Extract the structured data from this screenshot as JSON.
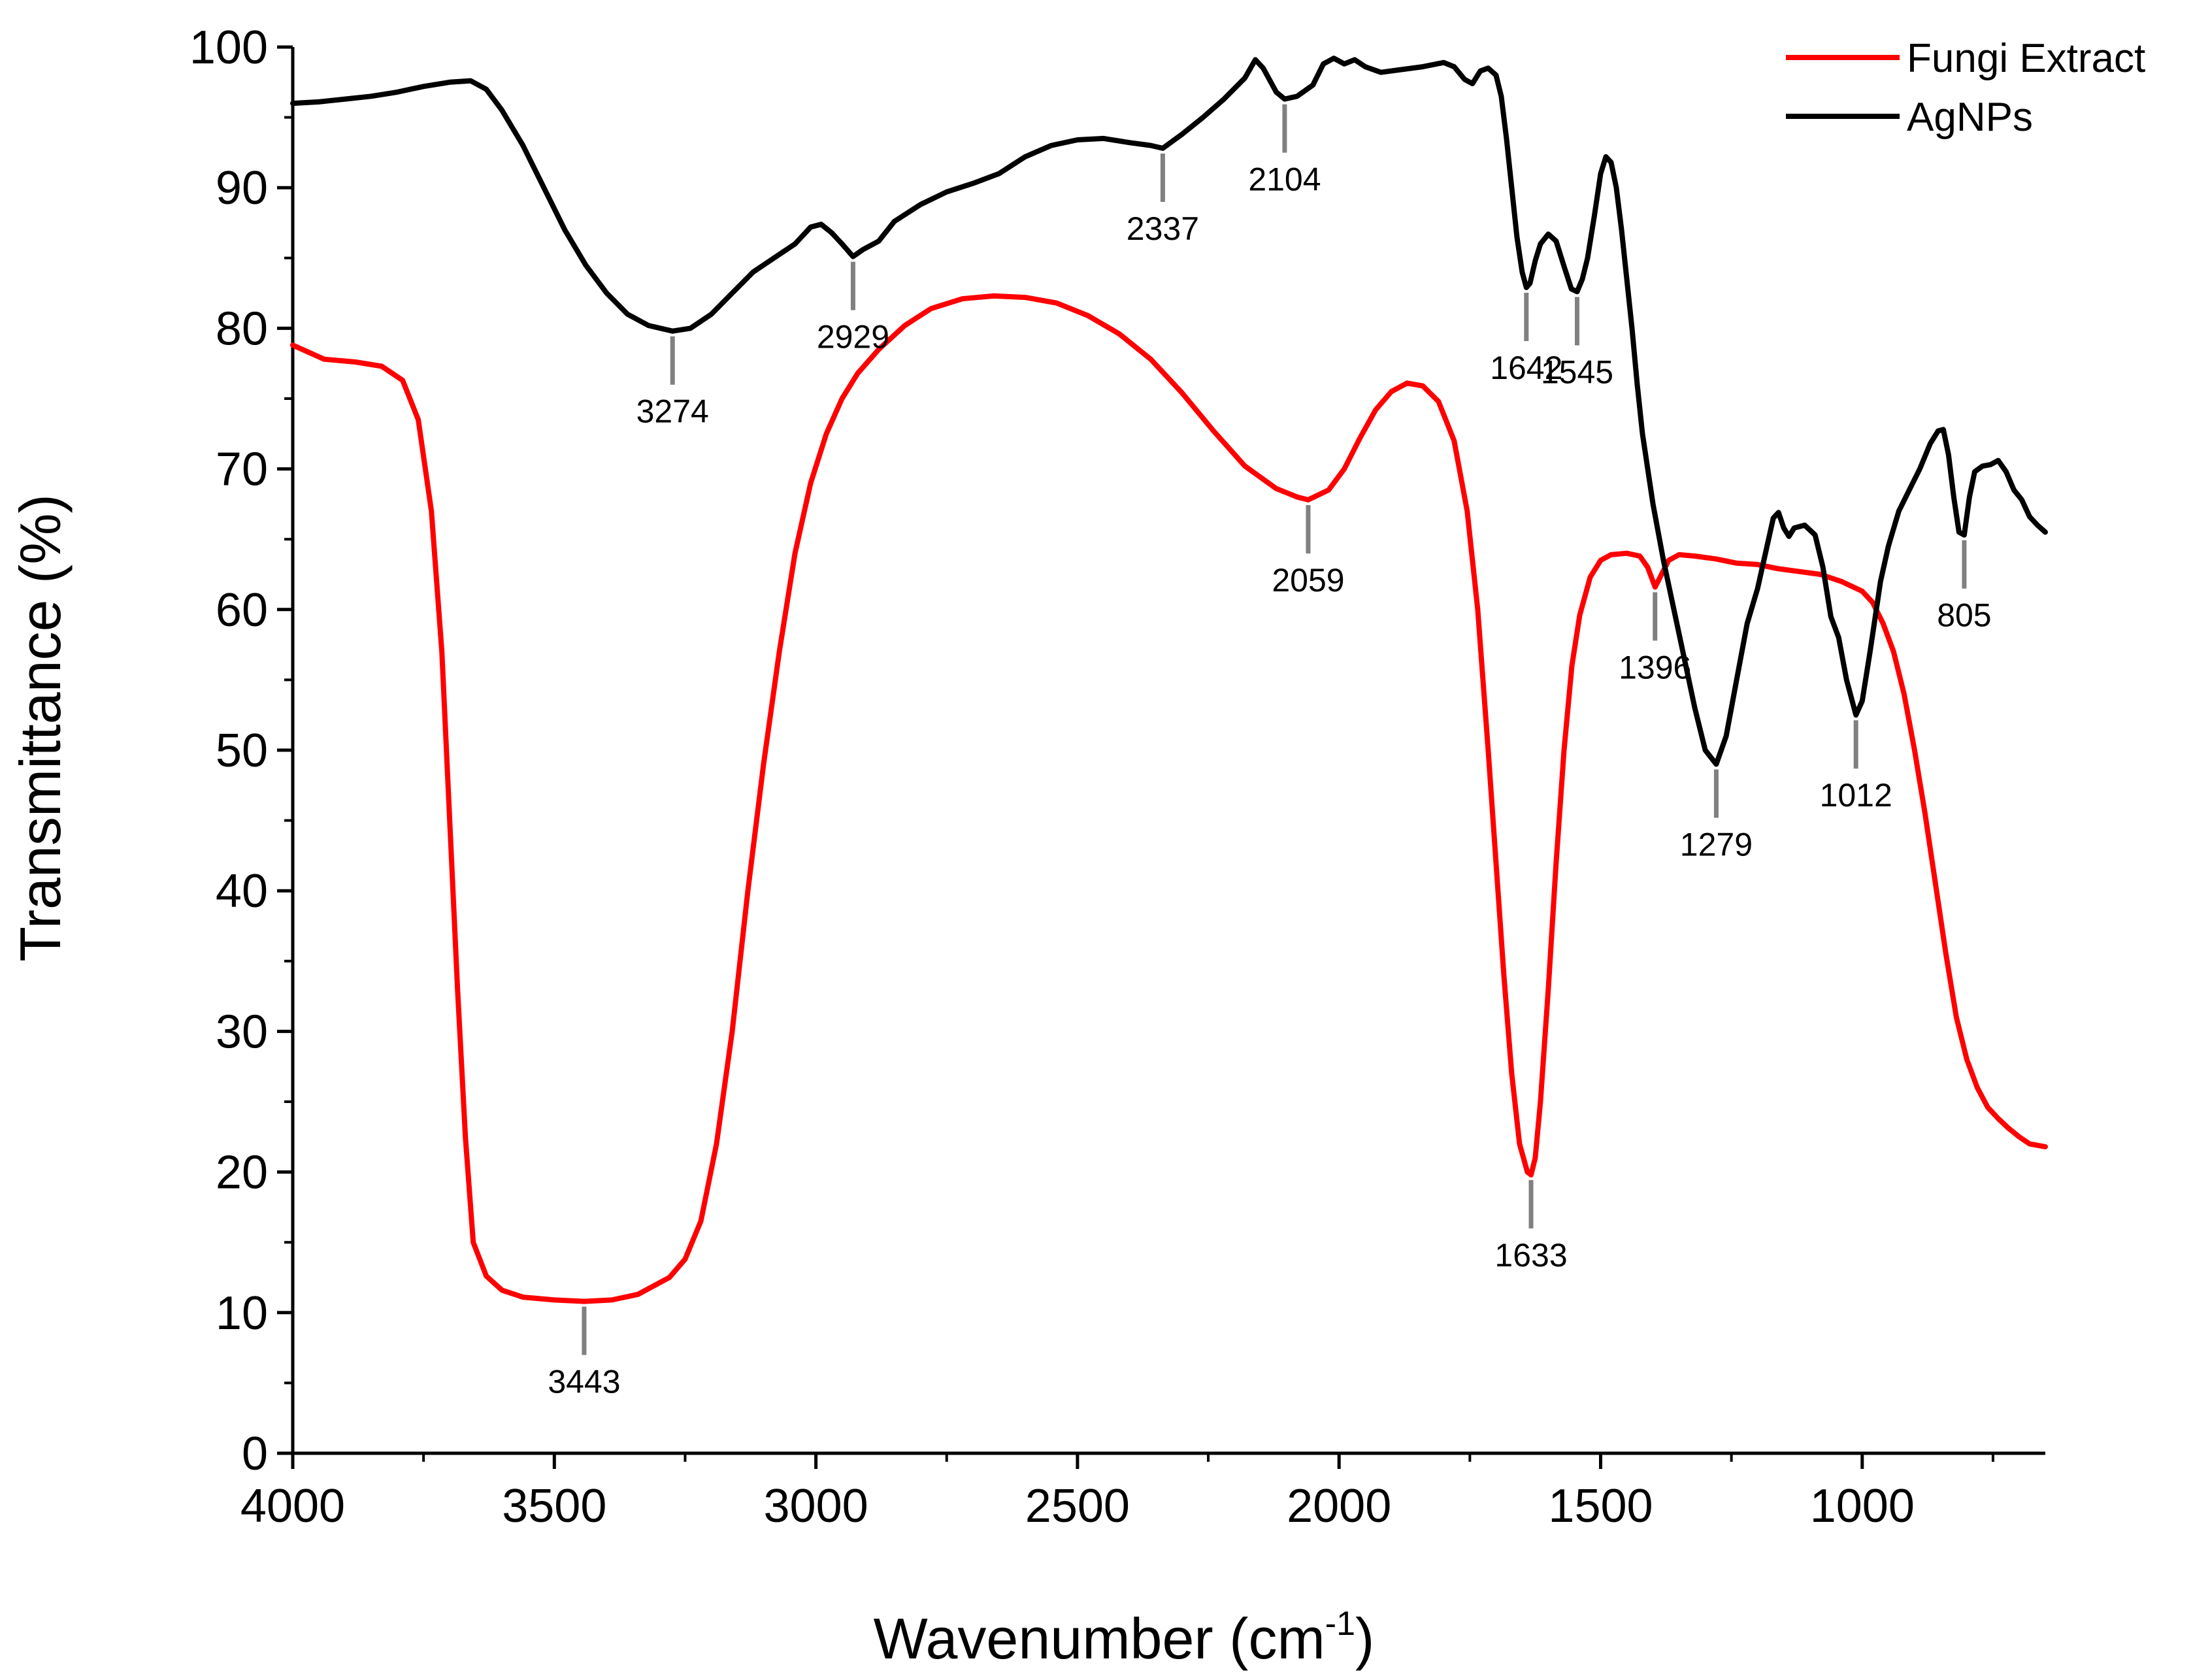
{
  "chart_data": {
    "type": "line",
    "title": "",
    "xlabel": "Wavenumber (cm",
    "xlabel_sup": "-1",
    "xlabel_close": ")",
    "ylabel": "Transmittance (%)",
    "xlim": [
      4000,
      650
    ],
    "ylim": [
      0,
      100
    ],
    "x_ticks": [
      4000,
      3500,
      3000,
      2500,
      2000,
      1500,
      1000
    ],
    "x_tick_labels": [
      "4000",
      "3500",
      "3000",
      "2500",
      "2000",
      "1500",
      "1000"
    ],
    "y_ticks": [
      0,
      10,
      20,
      30,
      40,
      50,
      60,
      70,
      80,
      90,
      100
    ],
    "y_tick_labels": [
      "0",
      "10",
      "20",
      "30",
      "40",
      "50",
      "60",
      "70",
      "80",
      "90",
      "100"
    ],
    "legend_position": "top-right",
    "series": [
      {
        "name": "Fungi Extract",
        "color": "#ff0000",
        "points": [
          [
            4000,
            78.8
          ],
          [
            3940,
            77.8
          ],
          [
            3880,
            77.6
          ],
          [
            3830,
            77.3
          ],
          [
            3790,
            76.3
          ],
          [
            3760,
            73.5
          ],
          [
            3735,
            67.0
          ],
          [
            3715,
            57.0
          ],
          [
            3700,
            45.0
          ],
          [
            3685,
            33.0
          ],
          [
            3670,
            22.5
          ],
          [
            3655,
            15.0
          ],
          [
            3630,
            12.6
          ],
          [
            3600,
            11.6
          ],
          [
            3560,
            11.1
          ],
          [
            3500,
            10.9
          ],
          [
            3443,
            10.8
          ],
          [
            3390,
            10.9
          ],
          [
            3340,
            11.3
          ],
          [
            3280,
            12.5
          ],
          [
            3250,
            13.8
          ],
          [
            3220,
            16.5
          ],
          [
            3190,
            22.0
          ],
          [
            3160,
            30.0
          ],
          [
            3130,
            40.0
          ],
          [
            3100,
            49.0
          ],
          [
            3070,
            57.0
          ],
          [
            3040,
            64.0
          ],
          [
            3010,
            69.0
          ],
          [
            2980,
            72.5
          ],
          [
            2950,
            75.0
          ],
          [
            2920,
            76.8
          ],
          [
            2880,
            78.5
          ],
          [
            2830,
            80.2
          ],
          [
            2780,
            81.4
          ],
          [
            2720,
            82.1
          ],
          [
            2660,
            82.3
          ],
          [
            2600,
            82.2
          ],
          [
            2540,
            81.8
          ],
          [
            2480,
            80.9
          ],
          [
            2420,
            79.6
          ],
          [
            2360,
            77.8
          ],
          [
            2300,
            75.4
          ],
          [
            2240,
            72.7
          ],
          [
            2180,
            70.2
          ],
          [
            2120,
            68.6
          ],
          [
            2080,
            68.0
          ],
          [
            2059,
            67.8
          ],
          [
            2020,
            68.5
          ],
          [
            1990,
            70.0
          ],
          [
            1960,
            72.2
          ],
          [
            1930,
            74.2
          ],
          [
            1900,
            75.5
          ],
          [
            1870,
            76.1
          ],
          [
            1840,
            75.9
          ],
          [
            1810,
            74.8
          ],
          [
            1780,
            72.0
          ],
          [
            1755,
            67.0
          ],
          [
            1735,
            60.0
          ],
          [
            1715,
            50.0
          ],
          [
            1700,
            42.0
          ],
          [
            1685,
            34.0
          ],
          [
            1670,
            27.0
          ],
          [
            1655,
            22.0
          ],
          [
            1640,
            20.0
          ],
          [
            1633,
            19.8
          ],
          [
            1625,
            21.0
          ],
          [
            1615,
            25.0
          ],
          [
            1600,
            33.0
          ],
          [
            1585,
            42.0
          ],
          [
            1570,
            50.0
          ],
          [
            1555,
            56.0
          ],
          [
            1540,
            59.6
          ],
          [
            1520,
            62.3
          ],
          [
            1500,
            63.5
          ],
          [
            1480,
            63.9
          ],
          [
            1450,
            64.0
          ],
          [
            1425,
            63.8
          ],
          [
            1410,
            63.0
          ],
          [
            1396,
            61.6
          ],
          [
            1385,
            62.4
          ],
          [
            1370,
            63.5
          ],
          [
            1350,
            63.9
          ],
          [
            1320,
            63.8
          ],
          [
            1280,
            63.6
          ],
          [
            1240,
            63.3
          ],
          [
            1200,
            63.2
          ],
          [
            1160,
            62.9
          ],
          [
            1120,
            62.7
          ],
          [
            1080,
            62.5
          ],
          [
            1040,
            62.0
          ],
          [
            1000,
            61.3
          ],
          [
            980,
            60.5
          ],
          [
            960,
            59.0
          ],
          [
            940,
            57.0
          ],
          [
            920,
            54.0
          ],
          [
            900,
            50.0
          ],
          [
            880,
            45.5
          ],
          [
            860,
            40.5
          ],
          [
            840,
            35.5
          ],
          [
            820,
            31.0
          ],
          [
            800,
            28.0
          ],
          [
            780,
            26.0
          ],
          [
            760,
            24.6
          ],
          [
            740,
            23.8
          ],
          [
            720,
            23.1
          ],
          [
            700,
            22.5
          ],
          [
            680,
            22.0
          ],
          [
            650,
            21.8
          ]
        ]
      },
      {
        "name": "AgNPs",
        "color": "#000000",
        "points": [
          [
            4000,
            96.0
          ],
          [
            3950,
            96.1
          ],
          [
            3900,
            96.3
          ],
          [
            3850,
            96.5
          ],
          [
            3800,
            96.8
          ],
          [
            3750,
            97.2
          ],
          [
            3700,
            97.5
          ],
          [
            3660,
            97.6
          ],
          [
            3630,
            97.0
          ],
          [
            3600,
            95.5
          ],
          [
            3560,
            93.0
          ],
          [
            3520,
            90.0
          ],
          [
            3480,
            87.0
          ],
          [
            3440,
            84.5
          ],
          [
            3400,
            82.5
          ],
          [
            3360,
            81.0
          ],
          [
            3320,
            80.2
          ],
          [
            3274,
            79.8
          ],
          [
            3240,
            80.0
          ],
          [
            3200,
            81.0
          ],
          [
            3160,
            82.5
          ],
          [
            3120,
            84.0
          ],
          [
            3080,
            85.0
          ],
          [
            3040,
            86.0
          ],
          [
            3010,
            87.2
          ],
          [
            2990,
            87.4
          ],
          [
            2970,
            86.8
          ],
          [
            2950,
            86.0
          ],
          [
            2929,
            85.1
          ],
          [
            2910,
            85.6
          ],
          [
            2880,
            86.2
          ],
          [
            2850,
            87.6
          ],
          [
            2800,
            88.8
          ],
          [
            2750,
            89.7
          ],
          [
            2700,
            90.3
          ],
          [
            2650,
            91.0
          ],
          [
            2600,
            92.2
          ],
          [
            2550,
            93.0
          ],
          [
            2500,
            93.4
          ],
          [
            2450,
            93.5
          ],
          [
            2400,
            93.2
          ],
          [
            2360,
            93.0
          ],
          [
            2337,
            92.8
          ],
          [
            2300,
            93.8
          ],
          [
            2260,
            95.0
          ],
          [
            2220,
            96.3
          ],
          [
            2180,
            97.8
          ],
          [
            2160,
            99.1
          ],
          [
            2145,
            98.5
          ],
          [
            2120,
            96.8
          ],
          [
            2104,
            96.3
          ],
          [
            2080,
            96.5
          ],
          [
            2050,
            97.3
          ],
          [
            2030,
            98.8
          ],
          [
            2010,
            99.2
          ],
          [
            1990,
            98.8
          ],
          [
            1970,
            99.1
          ],
          [
            1950,
            98.6
          ],
          [
            1920,
            98.2
          ],
          [
            1880,
            98.4
          ],
          [
            1840,
            98.6
          ],
          [
            1800,
            98.9
          ],
          [
            1780,
            98.6
          ],
          [
            1760,
            97.7
          ],
          [
            1745,
            97.4
          ],
          [
            1730,
            98.3
          ],
          [
            1715,
            98.5
          ],
          [
            1700,
            98.0
          ],
          [
            1690,
            96.5
          ],
          [
            1680,
            93.5
          ],
          [
            1670,
            90.0
          ],
          [
            1660,
            86.5
          ],
          [
            1650,
            84.0
          ],
          [
            1642,
            82.9
          ],
          [
            1635,
            83.2
          ],
          [
            1625,
            84.8
          ],
          [
            1615,
            86.0
          ],
          [
            1600,
            86.7
          ],
          [
            1585,
            86.2
          ],
          [
            1570,
            84.4
          ],
          [
            1556,
            82.8
          ],
          [
            1545,
            82.6
          ],
          [
            1535,
            83.5
          ],
          [
            1525,
            85.0
          ],
          [
            1512,
            88.0
          ],
          [
            1500,
            91.0
          ],
          [
            1490,
            92.2
          ],
          [
            1480,
            91.8
          ],
          [
            1470,
            90.0
          ],
          [
            1460,
            87.0
          ],
          [
            1450,
            83.5
          ],
          [
            1440,
            80.0
          ],
          [
            1430,
            76.0
          ],
          [
            1420,
            72.5
          ],
          [
            1400,
            67.5
          ],
          [
            1380,
            63.5
          ],
          [
            1360,
            60.0
          ],
          [
            1340,
            56.5
          ],
          [
            1320,
            53.0
          ],
          [
            1300,
            50.0
          ],
          [
            1279,
            49.0
          ],
          [
            1260,
            51.0
          ],
          [
            1240,
            55.0
          ],
          [
            1220,
            59.0
          ],
          [
            1200,
            61.5
          ],
          [
            1185,
            64.0
          ],
          [
            1170,
            66.5
          ],
          [
            1160,
            66.9
          ],
          [
            1150,
            65.8
          ],
          [
            1140,
            65.2
          ],
          [
            1130,
            65.8
          ],
          [
            1110,
            66.0
          ],
          [
            1090,
            65.3
          ],
          [
            1075,
            63.0
          ],
          [
            1060,
            59.5
          ],
          [
            1045,
            58.0
          ],
          [
            1030,
            55.0
          ],
          [
            1012,
            52.5
          ],
          [
            1000,
            53.5
          ],
          [
            985,
            57.0
          ],
          [
            965,
            62.0
          ],
          [
            950,
            64.5
          ],
          [
            930,
            67.0
          ],
          [
            910,
            68.5
          ],
          [
            890,
            70.0
          ],
          [
            870,
            71.8
          ],
          [
            855,
            72.7
          ],
          [
            845,
            72.8
          ],
          [
            835,
            71.0
          ],
          [
            825,
            68.0
          ],
          [
            815,
            65.5
          ],
          [
            805,
            65.3
          ],
          [
            795,
            68.0
          ],
          [
            785,
            69.8
          ],
          [
            770,
            70.2
          ],
          [
            755,
            70.3
          ],
          [
            740,
            70.6
          ],
          [
            725,
            69.8
          ],
          [
            710,
            68.5
          ],
          [
            695,
            67.8
          ],
          [
            680,
            66.6
          ],
          [
            665,
            66.0
          ],
          [
            650,
            65.5
          ]
        ]
      }
    ],
    "annotations": [
      {
        "label": "3274",
        "x": 3274,
        "y": 79.8,
        "series": "AgNPs"
      },
      {
        "label": "2929",
        "x": 2929,
        "y": 85.1,
        "series": "AgNPs"
      },
      {
        "label": "2337",
        "x": 2337,
        "y": 92.8,
        "series": "AgNPs"
      },
      {
        "label": "2104",
        "x": 2104,
        "y": 96.3,
        "series": "AgNPs"
      },
      {
        "label": "1642",
        "x": 1642,
        "y": 82.9,
        "series": "AgNPs"
      },
      {
        "label": "1545",
        "x": 1545,
        "y": 82.6,
        "series": "AgNPs"
      },
      {
        "label": "1279",
        "x": 1279,
        "y": 49.0,
        "series": "AgNPs"
      },
      {
        "label": "1012",
        "x": 1012,
        "y": 52.5,
        "series": "AgNPs"
      },
      {
        "label": "805",
        "x": 805,
        "y": 65.3,
        "series": "AgNPs"
      },
      {
        "label": "3443",
        "x": 3443,
        "y": 10.8,
        "series": "Fungi Extract"
      },
      {
        "label": "2059",
        "x": 2059,
        "y": 67.8,
        "series": "Fungi Extract"
      },
      {
        "label": "1633",
        "x": 1633,
        "y": 19.8,
        "series": "Fungi Extract"
      },
      {
        "label": "1396",
        "x": 1396,
        "y": 61.6,
        "series": "Fungi Extract"
      }
    ]
  }
}
